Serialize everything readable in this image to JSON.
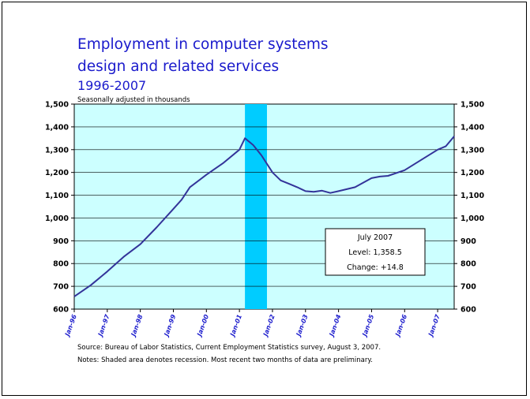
{
  "title": {
    "line1": "Employment in computer systems",
    "line2": "design and related services",
    "years": "1996-2007",
    "units": "Seasonally adjusted in thousands"
  },
  "footnotes": {
    "source": "Source:  Bureau of Labor Statistics, Current Employment Statistics survey, August 3, 2007.",
    "notes": "Notes:  Shaded area denotes recession.  Most recent two months of data are preliminary."
  },
  "callout": {
    "month": "July 2007",
    "level": "Level: 1,358.5",
    "change": "Change:  +14.8"
  },
  "colors": {
    "plot_background": "#ccffff",
    "recession": "#00ccff",
    "line": "#333399",
    "text_blue": "#1a1acc"
  },
  "chart_data": {
    "type": "line",
    "title": "Employment in computer systems design and related services",
    "subtitle": "1996-2007",
    "ylabel": "Seasonally adjusted in thousands",
    "ylim": [
      600,
      1500
    ],
    "yticks": [
      600,
      700,
      800,
      900,
      1000,
      1100,
      1200,
      1300,
      1400,
      1500
    ],
    "ytick_labels": [
      "600",
      "700",
      "800",
      "900",
      "1,000",
      "1,100",
      "1,200",
      "1,300",
      "1,400",
      "1,500"
    ],
    "xlim": [
      "1996-01",
      "2007-07"
    ],
    "xtick_labels": [
      "Jan-96",
      "Jan-97",
      "Jan-98",
      "Jan-99",
      "Jan-00",
      "Jan-01",
      "Jan-02",
      "Jan-03",
      "Jan-04",
      "Jan-05",
      "Jan-06",
      "Jan-07"
    ],
    "grid": true,
    "dual_y_axis": true,
    "recession": {
      "start": "2001-03",
      "end": "2001-11"
    },
    "series": [
      {
        "x": [
          "1996-01",
          "1996-07",
          "1997-01",
          "1997-07",
          "1998-01",
          "1998-07",
          "1999-01",
          "1999-04",
          "1999-07",
          "2000-01",
          "2000-07",
          "2001-01",
          "2001-03",
          "2001-06",
          "2001-09",
          "2002-01",
          "2002-04",
          "2002-07",
          "2002-10",
          "2003-01",
          "2003-04",
          "2003-07",
          "2003-10",
          "2004-01",
          "2004-07",
          "2005-01",
          "2005-04",
          "2005-07",
          "2006-01",
          "2006-07",
          "2007-01",
          "2007-04",
          "2007-07"
        ],
        "values": [
          655,
          705,
          765,
          830,
          885,
          960,
          1040,
          1080,
          1135,
          1190,
          1240,
          1300,
          1350,
          1320,
          1275,
          1200,
          1165,
          1150,
          1135,
          1118,
          1115,
          1120,
          1110,
          1118,
          1135,
          1175,
          1182,
          1185,
          1210,
          1255,
          1300,
          1315,
          1358.5
        ]
      }
    ]
  }
}
